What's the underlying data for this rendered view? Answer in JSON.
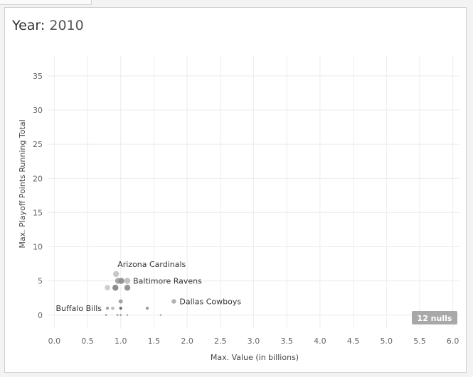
{
  "title": {
    "label": "Year",
    "separator": ": ",
    "value": "2010"
  },
  "chart_data": {
    "type": "scatter",
    "title": "Year: 2010",
    "xlabel": "Max. Value (in billions)",
    "ylabel": "Max. Playoff Points Running Total",
    "xlim": [
      -0.1,
      6.1
    ],
    "ylim": [
      -2,
      38
    ],
    "xticks": [
      0.0,
      0.5,
      1.0,
      1.5,
      2.0,
      2.5,
      3.0,
      3.5,
      4.0,
      4.5,
      5.0,
      5.5,
      6.0
    ],
    "xtick_labels": [
      "0.0",
      "0.5",
      "1.0",
      "1.5",
      "2.0",
      "2.5",
      "3.0",
      "3.5",
      "4.0",
      "4.5",
      "5.0",
      "5.5",
      "6.0"
    ],
    "yticks": [
      0,
      5,
      10,
      15,
      20,
      25,
      30,
      35
    ],
    "ytick_labels": [
      "0",
      "5",
      "10",
      "15",
      "20",
      "25",
      "30",
      "35"
    ],
    "grid": true,
    "points": [
      {
        "x": 0.93,
        "y": 6.0,
        "label": "Arizona Cardinals",
        "shade": "#c2c2c2",
        "r": 4.2
      },
      {
        "x": 1.1,
        "y": 5.0,
        "label": "Baltimore Ravens",
        "shade": "#bdbdbd",
        "r": 4.2
      },
      {
        "x": 1.8,
        "y": 2.0,
        "label": "Dallas Cowboys",
        "shade": "#a8a8a8",
        "r": 3.2
      },
      {
        "x": 0.8,
        "y": 1.0,
        "label": "Buffalo Bills",
        "shade": "#9a9a9a",
        "r": 2.2
      },
      {
        "x": 0.96,
        "y": 5.0,
        "label": "",
        "shade": "#a0a0a0",
        "r": 4.2
      },
      {
        "x": 1.01,
        "y": 5.0,
        "label": "",
        "shade": "#8c8c8c",
        "r": 4.2
      },
      {
        "x": 0.8,
        "y": 4.0,
        "label": "",
        "shade": "#c8c8c8",
        "r": 3.8
      },
      {
        "x": 0.92,
        "y": 4.0,
        "label": "",
        "shade": "#7f7f7f",
        "r": 4.2
      },
      {
        "x": 1.1,
        "y": 4.0,
        "label": "",
        "shade": "#8a8a8a",
        "r": 4.2
      },
      {
        "x": 1.0,
        "y": 2.0,
        "label": "",
        "shade": "#9c9c9c",
        "r": 3.0
      },
      {
        "x": 0.88,
        "y": 1.0,
        "label": "",
        "shade": "#b8b8b8",
        "r": 2.4
      },
      {
        "x": 1.0,
        "y": 1.0,
        "label": "",
        "shade": "#5a5a5a",
        "r": 2.0
      },
      {
        "x": 1.4,
        "y": 1.0,
        "label": "",
        "shade": "#8a8a8a",
        "r": 2.0
      },
      {
        "x": 0.78,
        "y": 0.0,
        "label": "",
        "shade": "#9a9a9a",
        "r": 1.4
      },
      {
        "x": 0.95,
        "y": 0.0,
        "label": "",
        "shade": "#9a9a9a",
        "r": 1.4
      },
      {
        "x": 1.0,
        "y": 0.0,
        "label": "",
        "shade": "#9a9a9a",
        "r": 1.4
      },
      {
        "x": 1.1,
        "y": 0.0,
        "label": "",
        "shade": "#9a9a9a",
        "r": 1.2
      },
      {
        "x": 1.6,
        "y": 0.0,
        "label": "",
        "shade": "#9a9a9a",
        "r": 1.2
      }
    ],
    "nulls_badge": "12 nulls",
    "colors": {
      "grid": "#ececec",
      "axis_text": "#666666",
      "label_text": "#333333",
      "badge_bg": "#a8a8a8",
      "badge_text": "#ffffff"
    }
  }
}
